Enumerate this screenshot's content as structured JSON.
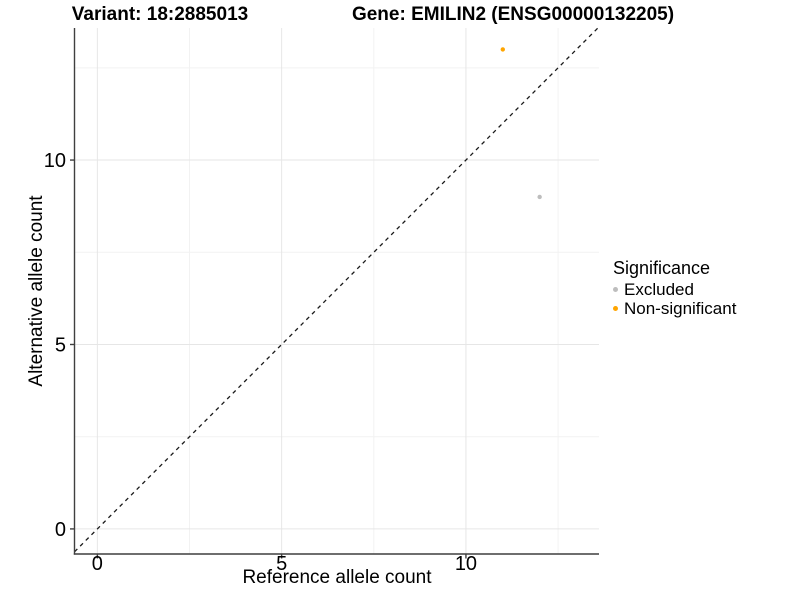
{
  "chart_data": {
    "type": "scatter",
    "titles": {
      "left": "Variant: 18:2885013",
      "right": "Gene: EMILIN2 (ENSG00000132205)"
    },
    "xlabel": "Reference allele count",
    "ylabel": "Alternative allele count",
    "x_ticks": [
      0,
      5,
      10
    ],
    "y_ticks": [
      0,
      5,
      10
    ],
    "x_minor_ticks": [
      2.5,
      7.5,
      12.5
    ],
    "y_minor_ticks": [
      2.5,
      7.5,
      12.5
    ],
    "xlim": [
      -0.62,
      13.61
    ],
    "ylim": [
      -0.68,
      13.58
    ],
    "grid": "major+minor",
    "reference_line": {
      "type": "identity",
      "slope": 1,
      "intercept": 0,
      "style": "dashed",
      "color": "#1a1a1a"
    },
    "series": [
      {
        "name": "Excluded",
        "color": "#BDBDBD",
        "points": [
          {
            "x": 12,
            "y": 9
          }
        ]
      },
      {
        "name": "Non-significant",
        "color": "#FFA500",
        "points": [
          {
            "x": 11,
            "y": 13
          }
        ]
      }
    ],
    "legend": {
      "title": "Significance",
      "position": "right",
      "items": [
        {
          "label": "Excluded",
          "color": "#BDBDBD"
        },
        {
          "label": "Non-significant",
          "color": "#FFA500"
        }
      ]
    },
    "colors": {
      "background": "#FFFFFF",
      "grid_major": "#E6E6E6",
      "grid_minor": "#F2F2F2",
      "axis": "#3F3F3F",
      "text": "#000000"
    }
  }
}
